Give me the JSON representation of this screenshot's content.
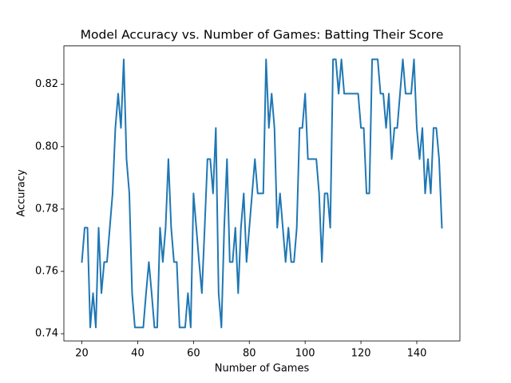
{
  "chart_data": {
    "type": "line",
    "title": "Model Accuracy vs. Number of Games: Batting Their Score",
    "x_label": "Number of Games",
    "y_label": "Accuracy",
    "x": [
      20,
      21,
      22,
      23,
      24,
      25,
      26,
      27,
      28,
      29,
      30,
      31,
      32,
      33,
      34,
      35,
      36,
      37,
      38,
      39,
      40,
      41,
      42,
      43,
      44,
      45,
      46,
      47,
      48,
      49,
      50,
      51,
      52,
      53,
      54,
      55,
      56,
      57,
      58,
      59,
      60,
      61,
      62,
      63,
      64,
      65,
      66,
      67,
      68,
      69,
      70,
      71,
      72,
      73,
      74,
      75,
      76,
      77,
      78,
      79,
      80,
      81,
      82,
      83,
      84,
      85,
      86,
      87,
      88,
      89,
      90,
      91,
      92,
      93,
      94,
      95,
      96,
      97,
      98,
      99,
      100,
      101,
      102,
      103,
      104,
      105,
      106,
      107,
      108,
      109,
      110,
      111,
      112,
      113,
      114,
      115,
      116,
      117,
      118,
      119,
      120,
      121,
      122,
      123,
      124,
      125,
      126,
      127,
      128,
      129,
      130,
      131,
      132,
      133,
      134,
      135,
      136,
      137,
      138,
      139,
      140,
      141,
      142,
      143,
      144,
      145,
      146,
      147,
      148,
      149
    ],
    "series": [
      {
        "name": "Accuracy",
        "color": "#1f77b4",
        "values": [
          0.763,
          0.774,
          0.774,
          0.742,
          0.753,
          0.742,
          0.774,
          0.753,
          0.763,
          0.763,
          0.774,
          0.785,
          0.806,
          0.817,
          0.806,
          0.828,
          0.796,
          0.785,
          0.753,
          0.742,
          0.742,
          0.742,
          0.742,
          0.753,
          0.763,
          0.753,
          0.742,
          0.742,
          0.774,
          0.763,
          0.774,
          0.796,
          0.774,
          0.763,
          0.763,
          0.742,
          0.742,
          0.742,
          0.753,
          0.742,
          0.785,
          0.774,
          0.763,
          0.753,
          0.774,
          0.796,
          0.796,
          0.785,
          0.806,
          0.753,
          0.742,
          0.774,
          0.796,
          0.763,
          0.763,
          0.774,
          0.753,
          0.774,
          0.785,
          0.763,
          0.774,
          0.785,
          0.796,
          0.785,
          0.785,
          0.785,
          0.828,
          0.806,
          0.817,
          0.806,
          0.774,
          0.785,
          0.774,
          0.763,
          0.774,
          0.763,
          0.763,
          0.774,
          0.806,
          0.806,
          0.817,
          0.796,
          0.796,
          0.796,
          0.796,
          0.785,
          0.763,
          0.785,
          0.785,
          0.774,
          0.828,
          0.828,
          0.817,
          0.828,
          0.817,
          0.817,
          0.817,
          0.817,
          0.817,
          0.817,
          0.806,
          0.806,
          0.785,
          0.785,
          0.828,
          0.828,
          0.828,
          0.817,
          0.817,
          0.806,
          0.817,
          0.796,
          0.806,
          0.806,
          0.817,
          0.828,
          0.817,
          0.817,
          0.817,
          0.828,
          0.806,
          0.796,
          0.806,
          0.785,
          0.796,
          0.785,
          0.806,
          0.806,
          0.796,
          0.774
        ]
      }
    ],
    "xlim": [
      13.55,
      155.45
    ],
    "xticks": [
      20,
      40,
      60,
      80,
      100,
      120,
      140
    ],
    "ylim": [
      0.7377,
      0.8323
    ],
    "yticks": [
      0.74,
      0.76,
      0.78,
      {
        "value": 0.8,
        "label": "0.80"
      },
      0.82
    ],
    "grid": false
  }
}
